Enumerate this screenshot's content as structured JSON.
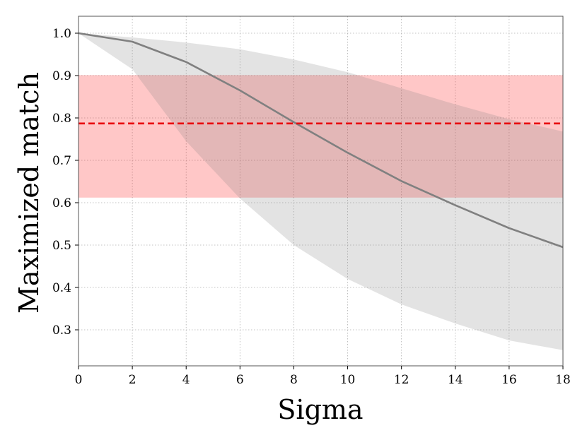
{
  "chart_data": {
    "type": "line",
    "xlabel": "Sigma",
    "ylabel": "Maximized match",
    "xlim": [
      0,
      18
    ],
    "ylim": [
      0.215,
      1.04
    ],
    "x_ticks": [
      0,
      2,
      4,
      6,
      8,
      10,
      12,
      14,
      16,
      18
    ],
    "y_ticks": [
      0.3,
      0.4,
      0.5,
      0.6,
      0.7,
      0.8,
      0.9,
      1.0
    ],
    "grid": true,
    "series": [
      {
        "kind": "line",
        "color": "#808080",
        "x": [
          0,
          2,
          4,
          6,
          8,
          10,
          12,
          14,
          16,
          18
        ],
        "y": [
          1.0,
          0.98,
          0.932,
          0.865,
          0.79,
          0.718,
          0.651,
          0.594,
          0.54,
          0.495
        ]
      },
      {
        "kind": "band",
        "color": "#808080",
        "opacity": 0.22,
        "x": [
          0,
          2,
          4,
          6,
          8,
          10,
          12,
          14,
          16,
          18
        ],
        "y_low": [
          1.0,
          0.915,
          0.745,
          0.61,
          0.5,
          0.42,
          0.36,
          0.315,
          0.275,
          0.252
        ],
        "y_high": [
          1.0,
          0.99,
          0.978,
          0.962,
          0.938,
          0.908,
          0.87,
          0.832,
          0.797,
          0.768
        ]
      }
    ],
    "reference": {
      "line_y": 0.787,
      "line_color": "#e8000b",
      "line_style": "dashed",
      "band_low": 0.612,
      "band_high": 0.901,
      "band_color": "#ff0000",
      "band_opacity": 0.22
    }
  }
}
